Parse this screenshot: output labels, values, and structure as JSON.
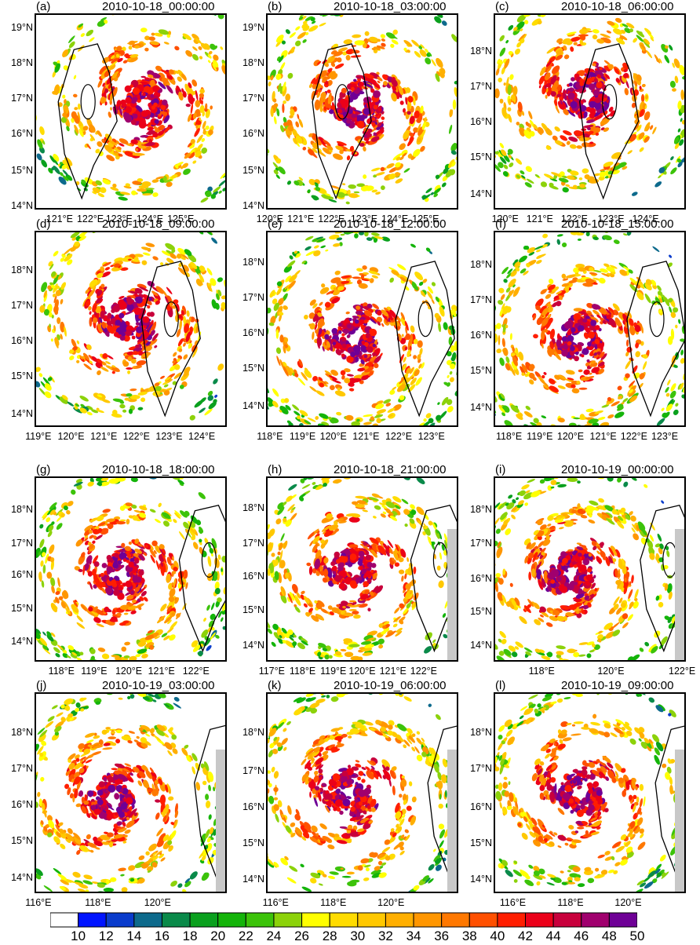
{
  "chart_data": {
    "type": "heatmap",
    "colorbar": {
      "levels": [
        10,
        12,
        14,
        16,
        18,
        20,
        22,
        24,
        26,
        28,
        30,
        32,
        34,
        36,
        38,
        40,
        42,
        44,
        46,
        48,
        50
      ],
      "labels": [
        "10",
        "12",
        "14",
        "16",
        "18",
        "20",
        "22",
        "24",
        "26",
        "28",
        "30",
        "32",
        "34",
        "36",
        "38",
        "40",
        "42",
        "44",
        "46",
        "48",
        "50"
      ],
      "colors": [
        "#ffffff",
        "#0014ff",
        "#0a3ccc",
        "#0d6a8c",
        "#0a8a4a",
        "#0aa01e",
        "#14b40a",
        "#3cc30a",
        "#8cd20a",
        "#ffff00",
        "#ffdc00",
        "#ffc800",
        "#ffaf00",
        "#ff9600",
        "#ff7800",
        "#ff5000",
        "#ff1e00",
        "#eb0019",
        "#c8003c",
        "#a0006e",
        "#6e0096"
      ]
    },
    "panels": [
      {
        "label": "(a)",
        "time": "2010-10-18_00:00:00",
        "yticks": [
          "14°N",
          "15°N",
          "16°N",
          "17°N",
          "18°N",
          "19°N"
        ],
        "xticks": [
          "121°E",
          "122°E",
          "123°E",
          "124°E",
          "125°E"
        ],
        "center": [
          123.0,
          16.7
        ]
      },
      {
        "label": "(b)",
        "time": "2010-10-18_03:00:00",
        "yticks": [
          "14°N",
          "15°N",
          "16°N",
          "17°N",
          "18°N",
          "19°N"
        ],
        "xticks": [
          "120°E",
          "121°E",
          "122°E",
          "123°E",
          "124°E",
          "125°E"
        ],
        "center": [
          122.6,
          16.4
        ]
      },
      {
        "label": "(c)",
        "time": "2010-10-18_06:00:00",
        "yticks": [
          "14°N",
          "15°N",
          "16°N",
          "17°N",
          "18°N"
        ],
        "xticks": [
          "120°E",
          "121°E",
          "122°E",
          "123°E",
          "124°E"
        ],
        "center": [
          122.1,
          16.4
        ]
      },
      {
        "label": "(d)",
        "time": "2010-10-18_09:00:00",
        "yticks": [
          "14°N",
          "15°N",
          "16°N",
          "17°N",
          "18°N"
        ],
        "xticks": [
          "119°E",
          "120°E",
          "121°E",
          "122°E",
          "123°E",
          "124°E"
        ],
        "center": [
          121.6,
          16.2
        ]
      },
      {
        "label": "(e)",
        "time": "2010-10-18_12:00:00",
        "yticks": [
          "14°N",
          "15°N",
          "16°N",
          "17°N",
          "18°N"
        ],
        "xticks": [
          "118°E",
          "119°E",
          "120°E",
          "121°E",
          "122°E",
          "123°E"
        ],
        "center": [
          120.8,
          16.2
        ]
      },
      {
        "label": "(f)",
        "time": "2010-10-18_15:00:00",
        "yticks": [
          "14°N",
          "15°N",
          "16°N",
          "17°N",
          "18°N"
        ],
        "xticks": [
          "118°E",
          "119°E",
          "120°E",
          "121°E",
          "122°E",
          "123°E"
        ],
        "center": [
          120.5,
          16.0
        ]
      },
      {
        "label": "(g)",
        "time": "2010-10-18_18:00:00",
        "yticks": [
          "14°N",
          "15°N",
          "16°N",
          "17°N",
          "18°N"
        ],
        "xticks": [
          "118°E",
          "119°E",
          "120°E",
          "121°E",
          "122°E"
        ],
        "center": [
          119.9,
          15.9
        ]
      },
      {
        "label": "(h)",
        "time": "2010-10-18_21:00:00",
        "yticks": [
          "14°N",
          "15°N",
          "16°N",
          "17°N",
          "18°N"
        ],
        "xticks": [
          "117°E",
          "118°E",
          "119°E",
          "120°E",
          "121°E",
          "122°E"
        ],
        "center": [
          119.6,
          16.0
        ]
      },
      {
        "label": "(i)",
        "time": "2010-10-19_00:00:00",
        "yticks": [
          "14°N",
          "15°N",
          "16°N",
          "17°N",
          "18°N"
        ],
        "xticks": [
          "118°E",
          "120°E",
          "122°E"
        ],
        "center": [
          118.7,
          16.0
        ]
      },
      {
        "label": "(j)",
        "time": "2010-10-19_03:00:00",
        "yticks": [
          "14°N",
          "15°N",
          "16°N",
          "17°N",
          "18°N"
        ],
        "xticks": [
          "116°E",
          "118°E",
          "120°E"
        ],
        "center": [
          118.5,
          16.0
        ]
      },
      {
        "label": "(k)",
        "time": "2010-10-19_06:00:00",
        "yticks": [
          "14°N",
          "15°N",
          "16°N",
          "17°N",
          "18°N"
        ],
        "xticks": [
          "116°E",
          "118°E",
          "120°E"
        ],
        "center": [
          118.2,
          16.0
        ]
      },
      {
        "label": "(l)",
        "time": "2010-10-19_09:00:00",
        "yticks": [
          "14°N",
          "15°N",
          "16°N",
          "17°N",
          "18°N"
        ],
        "xticks": [
          "116°E",
          "118°E",
          "120°E"
        ],
        "center": [
          118.1,
          16.0
        ]
      }
    ]
  }
}
